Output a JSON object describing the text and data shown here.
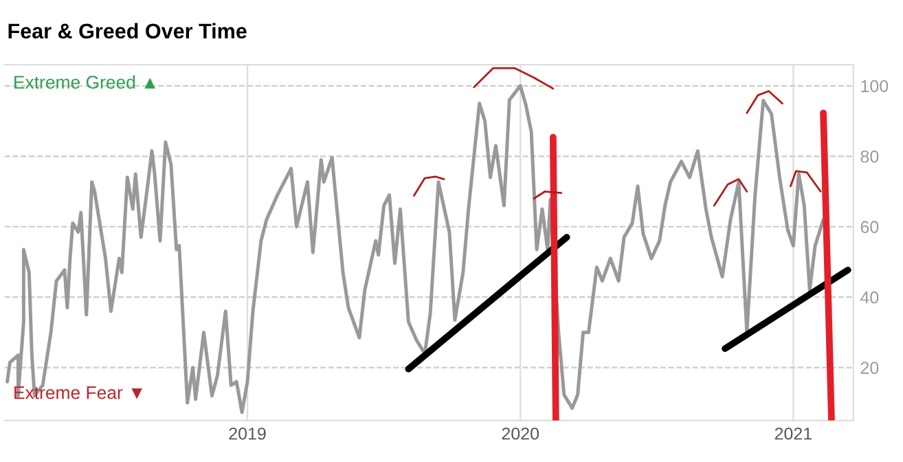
{
  "chart_data": {
    "type": "line",
    "title": "Fear & Greed Over Time",
    "annotations": [
      "Extreme Greed ▲",
      "Extreme Fear ▼"
    ],
    "xlim": [
      2018.11,
      2021.22
    ],
    "xticks": [
      2019,
      2020,
      2021
    ],
    "ylim": [
      5,
      106
    ],
    "yticks": [
      20,
      40,
      60,
      80,
      100
    ],
    "grid": true,
    "legend": false,
    "marker": "none",
    "line_style": "solid",
    "series": [
      {
        "color": "#999999",
        "x": [
          2018.12,
          2018.13,
          2018.16,
          2018.16,
          2018.18,
          2018.18,
          2018.2,
          2018.21,
          2018.22,
          2018.25,
          2018.26,
          2018.28,
          2018.3,
          2018.33,
          2018.34,
          2018.35,
          2018.36,
          2018.38,
          2018.39,
          2018.41,
          2018.43,
          2018.44,
          2018.48,
          2018.5,
          2018.53,
          2018.54,
          2018.56,
          2018.58,
          2018.59,
          2018.61,
          2018.63,
          2018.65,
          2018.66,
          2018.68,
          2018.7,
          2018.72,
          2018.74,
          2018.75,
          2018.78,
          2018.8,
          2018.81,
          2018.84,
          2018.87,
          2018.89,
          2018.92,
          2018.94,
          2018.96,
          2018.98,
          2019.0,
          2019.02,
          2019.05,
          2019.07,
          2019.11,
          2019.16,
          2019.18,
          2019.22,
          2019.24,
          2019.27,
          2019.28,
          2019.31,
          2019.35,
          2019.37,
          2019.41,
          2019.43,
          2019.47,
          2019.48,
          2019.5,
          2019.52,
          2019.54,
          2019.56,
          2019.59,
          2019.62,
          2019.65,
          2019.67,
          2019.7,
          2019.74,
          2019.76,
          2019.79,
          2019.81,
          2019.85,
          2019.87,
          2019.89,
          2019.91,
          2019.94,
          2019.96,
          2020.0,
          2020.02,
          2020.04,
          2020.06,
          2020.08,
          2020.1,
          2020.11,
          2020.14,
          2020.16,
          2020.19,
          2020.21,
          2020.23,
          2020.25,
          2020.28,
          2020.3,
          2020.33,
          2020.36,
          2020.38,
          2020.41,
          2020.43,
          2020.45,
          2020.48,
          2020.51,
          2020.53,
          2020.55,
          2020.59,
          2020.62,
          2020.65,
          2020.68,
          2020.7,
          2020.74,
          2020.77,
          2020.8,
          2020.83,
          2020.86,
          2020.89,
          2020.92,
          2020.95,
          2020.98,
          2021.0,
          2021.02,
          2021.04,
          2021.06,
          2021.08,
          2021.11
        ],
        "values": [
          16,
          21.5,
          23.5,
          12,
          33,
          53.5,
          47,
          24,
          12,
          15,
          20,
          30,
          44.6,
          47.7,
          37,
          51,
          61,
          58.5,
          64,
          35,
          72.7,
          70,
          51,
          36,
          51,
          47,
          74,
          65,
          75,
          57,
          69,
          81.5,
          75,
          56,
          84,
          77.7,
          53.5,
          54.6,
          10,
          20,
          11,
          30,
          12,
          17.7,
          36,
          15,
          16,
          7.3,
          16,
          36,
          56,
          62,
          69,
          76.5,
          60,
          72.7,
          52.7,
          79,
          72.7,
          79.6,
          47,
          37,
          28.5,
          42,
          56,
          52,
          66,
          69,
          49.6,
          65,
          33,
          27.7,
          24,
          35.4,
          72.7,
          58.5,
          33.5,
          47,
          65,
          95,
          90,
          74,
          83,
          66,
          96,
          100,
          94.6,
          87,
          53.5,
          65,
          53.5,
          67.7,
          30,
          12.3,
          8.5,
          12.3,
          30,
          30,
          48.5,
          44.6,
          51,
          44.6,
          57,
          61,
          71.5,
          58,
          51,
          56,
          66,
          72.7,
          78.5,
          74,
          81.5,
          65,
          57,
          45.8,
          62,
          72.7,
          30,
          69,
          95.8,
          92,
          74,
          59,
          54.6,
          75,
          66,
          42,
          54.6,
          62
        ]
      },
      {
        "color": "#000000",
        "x": [
          2019.59,
          2020.17
        ],
        "values": [
          19.6,
          57
        ]
      },
      {
        "color": "#000000",
        "x": [
          2020.75,
          2021.2
        ],
        "values": [
          25.4,
          47.7
        ]
      },
      {
        "color": "#e3202a",
        "x": [
          2020.12,
          2020.13
        ],
        "values": [
          85.4,
          5
        ]
      },
      {
        "color": "#e3202a",
        "x": [
          2021.11,
          2021.14
        ],
        "values": [
          92.3,
          5
        ]
      },
      {
        "color": "#b01c1c",
        "x": [
          2019.61,
          2019.65,
          2019.69,
          2019.72
        ],
        "values": [
          68.8,
          73.8,
          74.2,
          73.5
        ]
      },
      {
        "color": "#b01c1c",
        "x": [
          2019.83,
          2019.9,
          2019.98,
          2020.05,
          2020.12
        ],
        "values": [
          99.6,
          105,
          105,
          102.3,
          99.2
        ]
      },
      {
        "color": "#b01c1c",
        "x": [
          2020.05,
          2020.09,
          2020.15
        ],
        "values": [
          68,
          70,
          69.6
        ]
      },
      {
        "color": "#b01c1c",
        "x": [
          2020.71,
          2020.76,
          2020.8,
          2020.83
        ],
        "values": [
          66,
          72,
          73.5,
          70
        ]
      },
      {
        "color": "#b01c1c",
        "x": [
          2020.83,
          2020.87,
          2020.91,
          2020.96
        ],
        "values": [
          92.3,
          97.3,
          98.5,
          95
        ]
      },
      {
        "color": "#b01c1c",
        "x": [
          2020.99,
          2021.01,
          2021.05,
          2021.1
        ],
        "values": [
          71.5,
          75.8,
          75.4,
          70
        ]
      }
    ]
  }
}
